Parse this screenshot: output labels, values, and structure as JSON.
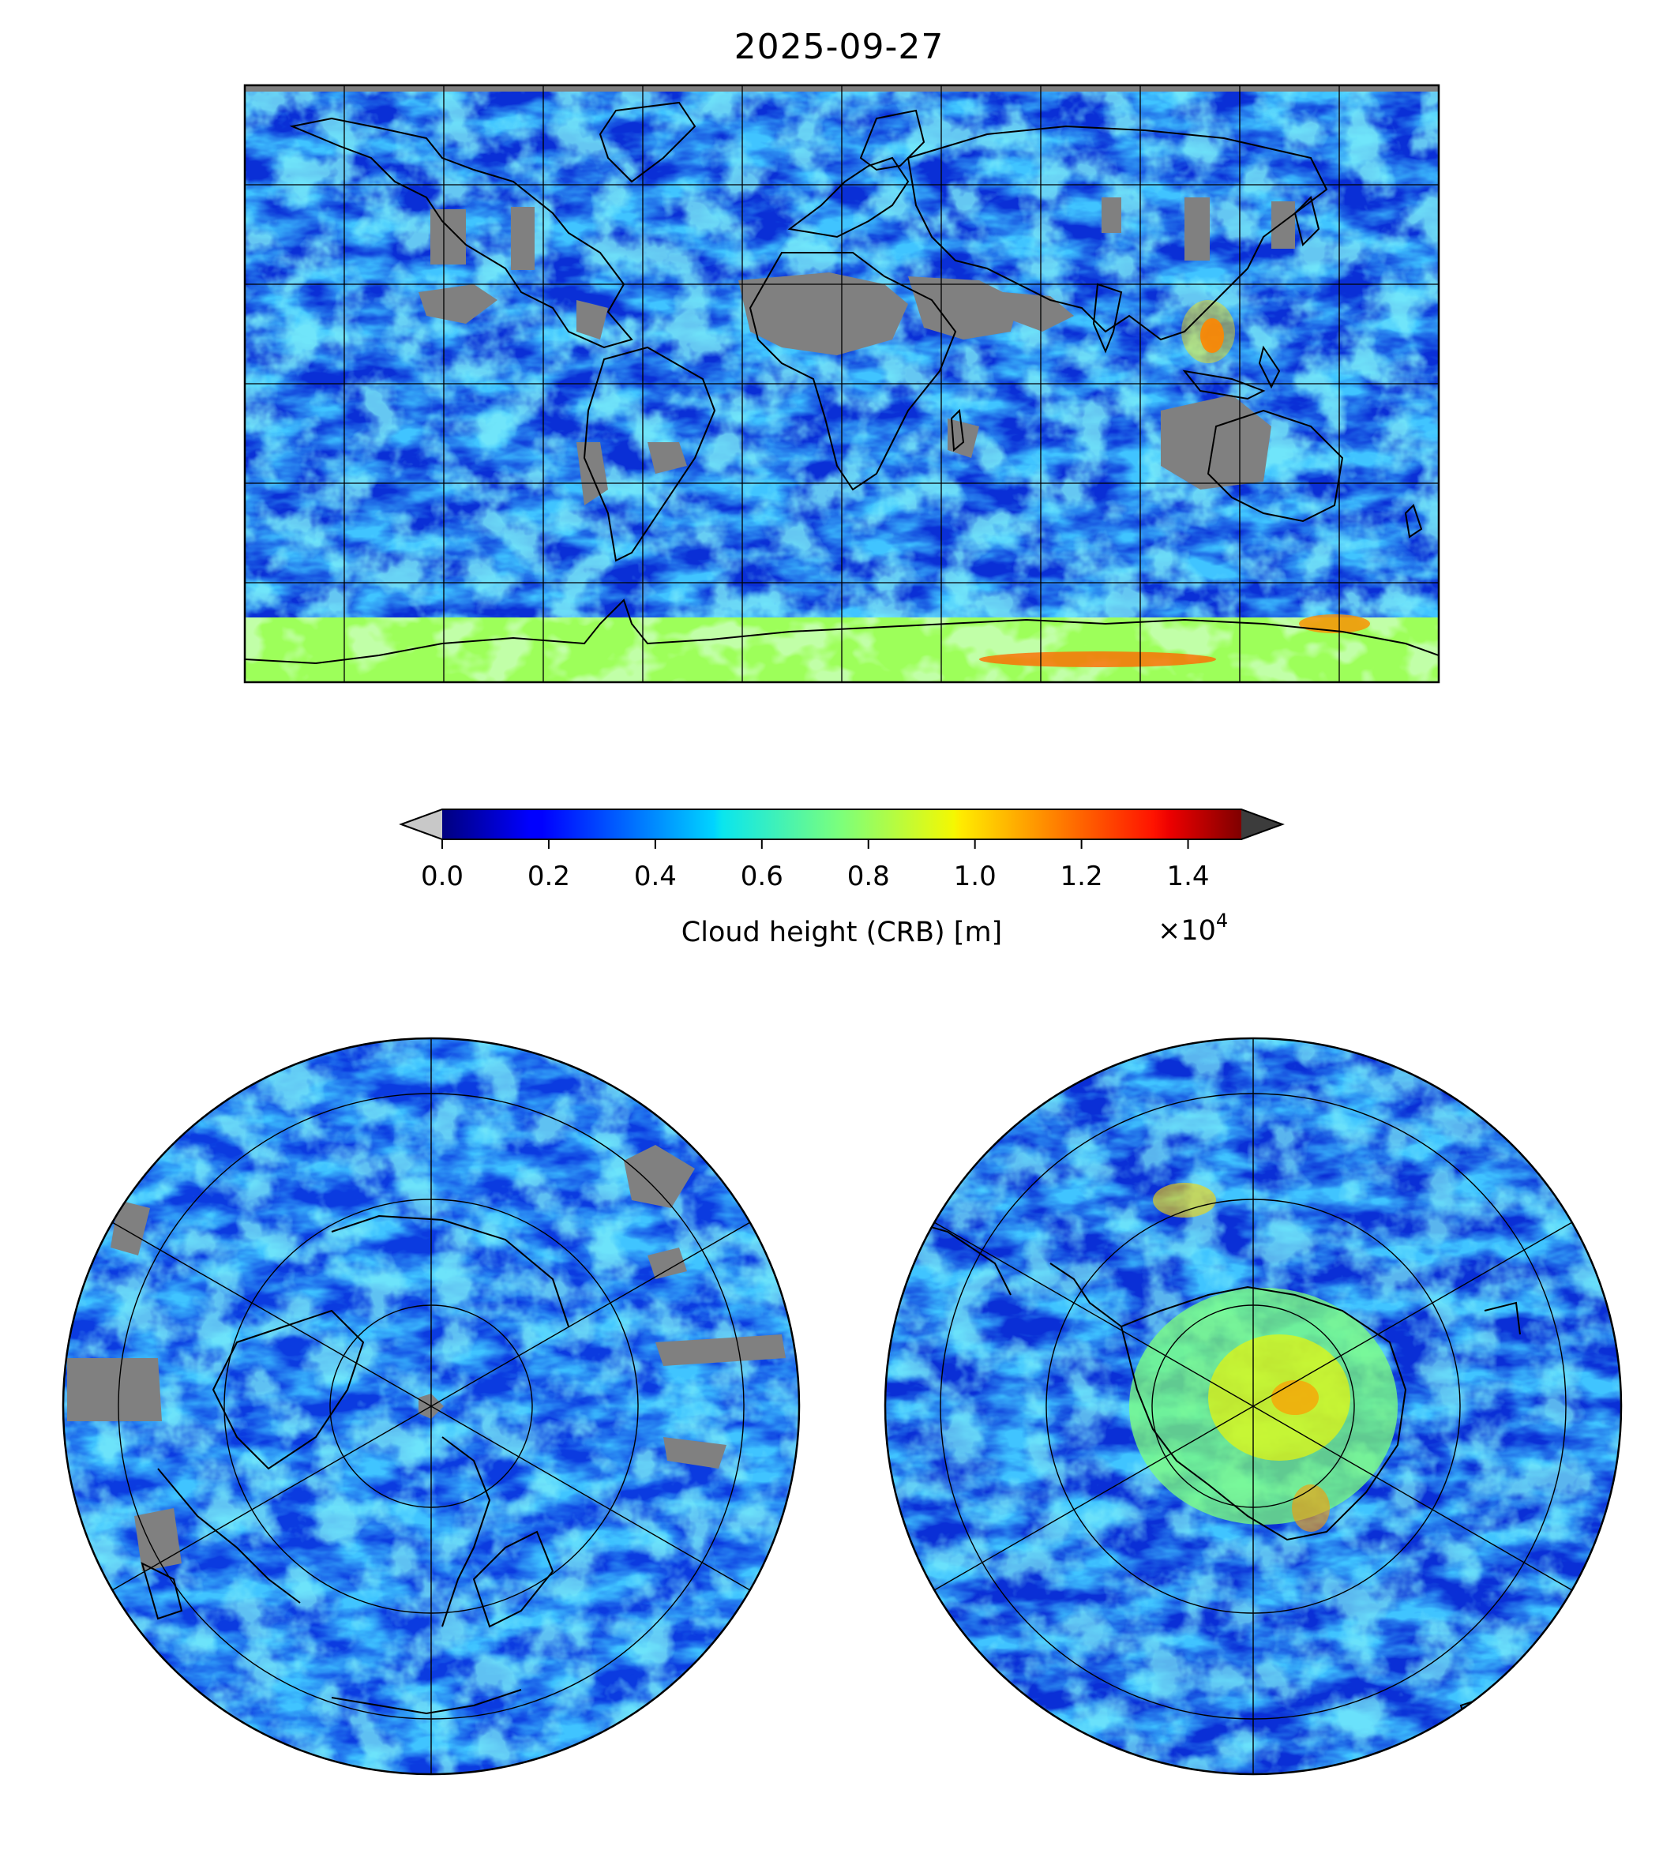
{
  "title": "2025-09-27",
  "colorbar": {
    "label": "Cloud height (CRB) [m]",
    "multiplier_base": "×10",
    "multiplier_exponent": "4",
    "ticks": [
      "0.0",
      "0.2",
      "0.4",
      "0.6",
      "0.8",
      "1.0",
      "1.2",
      "1.4"
    ],
    "tick_values": [
      0.0,
      0.2,
      0.4,
      0.6,
      0.8,
      1.0,
      1.2,
      1.4
    ],
    "range": [
      0.0,
      1.5
    ],
    "colormap": "jet",
    "extend": "both",
    "under_color": "#c8c8c8",
    "over_color": "#3c3c3c"
  },
  "colors": {
    "no_data": "#808080",
    "coastline": "#000000",
    "grid": "#000000"
  },
  "panels": [
    {
      "name": "global-map",
      "projection": "plate-carree",
      "grid_lon_step_deg": 30,
      "grid_lat_step_deg": 30
    },
    {
      "name": "north-polar-map",
      "projection": "north-polar-stereographic"
    },
    {
      "name": "south-polar-map",
      "projection": "south-polar-stereographic"
    }
  ]
}
